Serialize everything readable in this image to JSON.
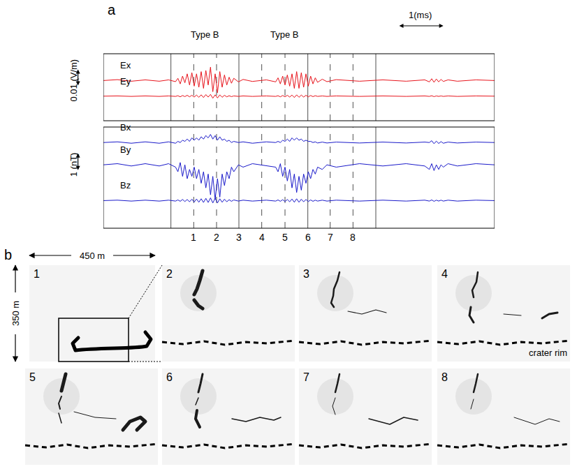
{
  "chart_data": {
    "type": "line",
    "letter": "a",
    "tick_labels": false,
    "grid": false,
    "xlim": [
      0,
      8.4
    ],
    "x": [
      0,
      0.3,
      0.6,
      0.9,
      1.2,
      1.4,
      1.55,
      1.6,
      1.65,
      1.7,
      1.75,
      1.8,
      1.85,
      1.9,
      1.95,
      2.0,
      2.05,
      2.1,
      2.15,
      2.2,
      2.25,
      2.3,
      2.35,
      2.4,
      2.45,
      2.5,
      2.55,
      2.6,
      2.65,
      2.7,
      2.75,
      2.8,
      2.9,
      3.0,
      3.2,
      3.5,
      3.7,
      3.75,
      3.8,
      3.85,
      3.9,
      3.95,
      4.0,
      4.05,
      4.1,
      4.15,
      4.2,
      4.25,
      4.3,
      4.35,
      4.4,
      4.45,
      4.5,
      4.55,
      4.6,
      4.7,
      4.8,
      5.0,
      5.5,
      6.0,
      6.5,
      6.9,
      7.0,
      7.05,
      7.1,
      7.15,
      7.2,
      7.25,
      7.3,
      7.4,
      7.6,
      8.0,
      8.4
    ],
    "panels": [
      {
        "unit_bar": {
          "value": 0.01,
          "label": "0.01 (V/m)"
        },
        "series": [
          {
            "name": "Ex",
            "color": "#e8141c",
            "ylim": [
              -0.018,
              0.012
            ],
            "values": [
              0,
              0.0004,
              -0.0003,
              0.0003,
              -0.0003,
              0.0003,
              -0.0005,
              0.001,
              -0.0015,
              0.002,
              -0.001,
              0.003,
              -0.002,
              0.0035,
              -0.0025,
              0.003,
              -0.003,
              0.004,
              -0.0035,
              0.0045,
              -0.002,
              0.006,
              -0.005,
              0.003,
              -0.0055,
              0.004,
              -0.003,
              0.0025,
              -0.002,
              0.0015,
              -0.0012,
              0.001,
              -0.0006,
              0.0005,
              -0.0004,
              0.0003,
              -0.0006,
              0.0012,
              -0.0015,
              0.002,
              -0.002,
              0.0025,
              -0.0025,
              0.003,
              -0.0035,
              0.004,
              -0.0035,
              0.0035,
              -0.003,
              0.003,
              -0.0025,
              0.002,
              -0.0015,
              0.0012,
              -0.0008,
              0.0006,
              -0.0005,
              0.0004,
              -0.0003,
              0.0003,
              -0.0003,
              0.0003,
              -0.0006,
              0.0008,
              -0.0008,
              0.0007,
              -0.0006,
              0.0005,
              -0.0004,
              0.0003,
              -0.0003,
              0.0003,
              0
            ]
          },
          {
            "name": "Ey",
            "color": "#e8141c",
            "ylim": [
              -0.011,
              0.019
            ],
            "values": [
              0,
              0.0001,
              -0.0001,
              0.0001,
              -0.0001,
              0.0001,
              -0.0001,
              0.0002,
              -0.0003,
              0.0003,
              -0.0002,
              0.0004,
              -0.0003,
              0.0004,
              -0.0004,
              0.0005,
              -0.0005,
              0.0006,
              -0.0006,
              0.0007,
              -0.0004,
              0.0008,
              -0.0009,
              0.0006,
              -0.0008,
              0.0006,
              -0.0005,
              0.0004,
              -0.0003,
              0.0002,
              -0.0002,
              0.0001,
              -0.0001,
              0.0001,
              -0.0001,
              0.0001,
              -0.0001,
              0.0002,
              -0.0003,
              0.0003,
              -0.0003,
              0.0004,
              -0.0004,
              0.0005,
              -0.0006,
              0.0006,
              -0.0005,
              0.0005,
              -0.0004,
              0.0004,
              -0.0003,
              0.0003,
              -0.0002,
              0.0002,
              -0.0001,
              0.0001,
              -0.0001,
              0.0001,
              -0.0001,
              0.0001,
              -0.0001,
              0.0001,
              -0.0001,
              0.0002,
              -0.0002,
              0.0001,
              -0.0001,
              0.0001,
              -0.0001,
              0.0001,
              -0.0001,
              0.0001,
              0
            ]
          }
        ]
      },
      {
        "unit_bar": {
          "value": 1,
          "label": "1 (nT)"
        },
        "series": [
          {
            "name": "Bx",
            "color": "#1a1aca",
            "ylim": [
              -3.7,
              0.67
            ],
            "values": [
              0,
              0.03,
              -0.03,
              0.03,
              -0.03,
              0.03,
              -0.03,
              0.05,
              0.0,
              0.1,
              0.05,
              0.15,
              0.05,
              0.2,
              0.1,
              0.2,
              0.1,
              0.25,
              0.15,
              0.3,
              0.2,
              0.35,
              0.15,
              0.3,
              0.1,
              0.25,
              0.1,
              0.15,
              0.05,
              0.1,
              0.0,
              0.05,
              0.0,
              0.03,
              -0.03,
              0.03,
              0.0,
              0.05,
              0.0,
              0.1,
              0.05,
              0.15,
              0.05,
              0.2,
              0.1,
              0.2,
              0.1,
              0.15,
              0.05,
              0.1,
              0.05,
              0.05,
              0.0,
              0.03,
              -0.02,
              0.02,
              -0.02,
              0.02,
              -0.02,
              0.02,
              -0.02,
              0.02,
              0.0,
              0.08,
              -0.05,
              0.06,
              -0.04,
              0.04,
              -0.03,
              0.02,
              -0.02,
              0.02,
              0
            ]
          },
          {
            "name": "By",
            "color": "#1a1aca",
            "ylim": [
              -2.75,
              1.64
            ],
            "values": [
              0,
              0.05,
              -0.05,
              0.05,
              -0.05,
              0.05,
              -0.1,
              -0.3,
              0.1,
              -0.5,
              0.0,
              -0.6,
              -0.2,
              -0.5,
              -0.1,
              -0.6,
              -0.2,
              -0.8,
              -0.3,
              -1.0,
              -0.4,
              -1.3,
              -0.5,
              -1.5,
              -0.6,
              -1.4,
              -0.4,
              -0.9,
              -0.3,
              -0.6,
              -0.1,
              -0.3,
              0.0,
              -0.1,
              0.05,
              -0.05,
              -0.1,
              -0.3,
              0.05,
              -0.5,
              -0.1,
              -0.7,
              -0.2,
              -1.0,
              -0.4,
              -1.2,
              -0.5,
              -1.1,
              -0.4,
              -0.8,
              -0.3,
              -0.6,
              -0.2,
              -0.4,
              -0.1,
              -0.2,
              0.0,
              -0.1,
              0.05,
              -0.05,
              0.05,
              -0.05,
              -0.2,
              0.05,
              -0.25,
              0.0,
              -0.2,
              0.0,
              -0.1,
              0.05,
              -0.05,
              0.05,
              0
            ]
          },
          {
            "name": "Bz",
            "color": "#1a1aca",
            "ylim": [
              -1.2,
              3.2
            ],
            "values": [
              0,
              0.02,
              -0.02,
              0.02,
              -0.02,
              0.02,
              -0.02,
              0.03,
              -0.03,
              0.05,
              -0.04,
              0.05,
              -0.05,
              0.06,
              -0.06,
              0.07,
              -0.07,
              0.08,
              -0.08,
              0.1,
              -0.08,
              0.12,
              -0.1,
              0.1,
              -0.1,
              0.08,
              -0.07,
              0.06,
              -0.05,
              0.04,
              -0.03,
              0.03,
              -0.02,
              0.02,
              -0.02,
              0.02,
              -0.02,
              0.03,
              -0.03,
              0.04,
              -0.04,
              0.05,
              -0.05,
              0.07,
              -0.07,
              0.08,
              -0.07,
              0.06,
              -0.05,
              0.05,
              -0.04,
              0.03,
              -0.03,
              0.02,
              -0.02,
              0.02,
              -0.02,
              0.02,
              -0.02,
              0.02,
              -0.02,
              0.02,
              -0.02,
              0.03,
              -0.03,
              0.02,
              -0.02,
              0.02,
              -0.02,
              0.02,
              -0.02,
              0.02,
              0
            ]
          }
        ]
      }
    ],
    "time_bar": {
      "value": 1,
      "label": "1(ms)"
    },
    "annotations": [
      {
        "text": "Type B",
        "t": 2.18
      },
      {
        "text": "Type B",
        "t": 3.88
      }
    ],
    "frame_marks": [
      {
        "t": 1.45,
        "line_style": "solid"
      },
      {
        "t": 1.94,
        "label": "1",
        "line_style": "dashed"
      },
      {
        "t": 2.43,
        "label": "2",
        "line_style": "dashed"
      },
      {
        "t": 2.91,
        "label": "3",
        "line_style": "solid"
      },
      {
        "t": 3.4,
        "label": "4",
        "line_style": "dashed"
      },
      {
        "t": 3.9,
        "label": "5",
        "line_style": "dashed"
      },
      {
        "t": 4.39,
        "label": "6",
        "line_style": "solid"
      },
      {
        "t": 4.87,
        "label": "7",
        "line_style": "dashed"
      },
      {
        "t": 5.36,
        "label": "8",
        "line_style": "dashed"
      },
      {
        "t": 5.85,
        "line_style": "solid"
      }
    ]
  },
  "panel_b": {
    "letter": "b",
    "width_label": "450 m",
    "height_label": "350 m",
    "frames": [
      "1",
      "2",
      "3",
      "4",
      "5",
      "6",
      "7",
      "8"
    ],
    "crater_label": "crater rim"
  }
}
